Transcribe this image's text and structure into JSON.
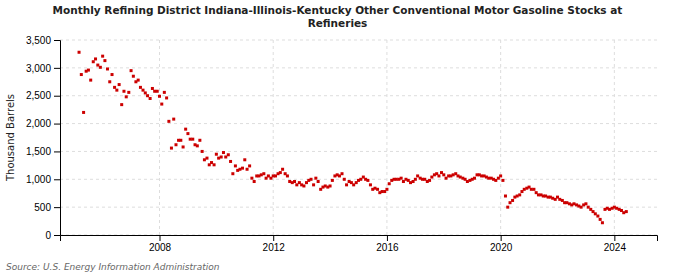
{
  "chart_data": {
    "type": "scatter",
    "title": "Monthly Refining District Indiana-Illinois-Kentucky Other Conventional Motor Gasoline Stocks at\nRefineries",
    "ylabel": "Thousand Barrels",
    "source": "Source: U.S. Energy Information Administration",
    "color": "#cc0000",
    "marker": "square",
    "grid": true,
    "xlim": [
      2004.5,
      2025.5
    ],
    "xticks": [
      2008,
      2012,
      2016,
      2020,
      2024
    ],
    "ylim": [
      0,
      3500
    ],
    "yticks": [
      0,
      500,
      {
        "value": 1000,
        "label": "1,000"
      },
      {
        "value": 1500,
        "label": "1,500"
      },
      {
        "value": 2000,
        "label": "2,000"
      },
      {
        "value": 2500,
        "label": "2,500"
      },
      {
        "value": 3000,
        "label": "3,000"
      },
      {
        "value": 3500,
        "label": "3,500"
      }
    ],
    "x": [
      2005.17,
      2005.25,
      2005.33,
      2005.42,
      2005.5,
      2005.58,
      2005.67,
      2005.75,
      2005.83,
      2005.92,
      2006.0,
      2006.08,
      2006.17,
      2006.25,
      2006.33,
      2006.42,
      2006.5,
      2006.58,
      2006.67,
      2006.75,
      2006.83,
      2006.92,
      2007.0,
      2007.08,
      2007.17,
      2007.25,
      2007.33,
      2007.42,
      2007.5,
      2007.58,
      2007.67,
      2007.75,
      2007.83,
      2007.92,
      2008.0,
      2008.08,
      2008.17,
      2008.25,
      2008.33,
      2008.42,
      2008.5,
      2008.58,
      2008.67,
      2008.75,
      2008.83,
      2008.92,
      2009.0,
      2009.08,
      2009.17,
      2009.25,
      2009.33,
      2009.42,
      2009.5,
      2009.58,
      2009.67,
      2009.75,
      2009.83,
      2009.92,
      2010.0,
      2010.08,
      2010.17,
      2010.25,
      2010.33,
      2010.42,
      2010.5,
      2010.58,
      2010.67,
      2010.75,
      2010.83,
      2010.92,
      2011.0,
      2011.08,
      2011.17,
      2011.25,
      2011.33,
      2011.42,
      2011.5,
      2011.58,
      2011.67,
      2011.75,
      2011.83,
      2011.92,
      2012.0,
      2012.08,
      2012.17,
      2012.25,
      2012.33,
      2012.42,
      2012.5,
      2012.58,
      2012.67,
      2012.75,
      2012.83,
      2012.92,
      2013.0,
      2013.08,
      2013.17,
      2013.25,
      2013.33,
      2013.42,
      2013.5,
      2013.58,
      2013.67,
      2013.75,
      2013.83,
      2013.92,
      2014.0,
      2014.08,
      2014.17,
      2014.25,
      2014.33,
      2014.42,
      2014.5,
      2014.58,
      2014.67,
      2014.75,
      2014.83,
      2014.92,
      2015.0,
      2015.08,
      2015.17,
      2015.25,
      2015.33,
      2015.42,
      2015.5,
      2015.58,
      2015.67,
      2015.75,
      2015.83,
      2015.92,
      2016.0,
      2016.08,
      2016.17,
      2016.25,
      2016.33,
      2016.42,
      2016.5,
      2016.58,
      2016.67,
      2016.75,
      2016.83,
      2016.92,
      2017.0,
      2017.08,
      2017.17,
      2017.25,
      2017.33,
      2017.42,
      2017.5,
      2017.58,
      2017.67,
      2017.75,
      2017.83,
      2017.92,
      2018.0,
      2018.08,
      2018.17,
      2018.25,
      2018.33,
      2018.42,
      2018.5,
      2018.58,
      2018.67,
      2018.75,
      2018.83,
      2018.92,
      2019.0,
      2019.08,
      2019.17,
      2019.25,
      2019.33,
      2019.42,
      2019.5,
      2019.58,
      2019.67,
      2019.75,
      2019.83,
      2019.92,
      2020.0,
      2020.08,
      2020.17,
      2020.25,
      2020.33,
      2020.42,
      2020.5,
      2020.58,
      2020.67,
      2020.75,
      2020.83,
      2020.92,
      2021.0,
      2021.08,
      2021.17,
      2021.25,
      2021.33,
      2021.42,
      2021.5,
      2021.58,
      2021.67,
      2021.75,
      2021.83,
      2021.92,
      2022.0,
      2022.08,
      2022.17,
      2022.25,
      2022.33,
      2022.42,
      2022.5,
      2022.58,
      2022.67,
      2022.75,
      2022.83,
      2022.92,
      2023.0,
      2023.08,
      2023.17,
      2023.25,
      2023.33,
      2023.42,
      2023.5,
      2023.58,
      2023.67,
      2023.75,
      2023.83,
      2023.92,
      2024.0,
      2024.08,
      2024.17,
      2024.25,
      2024.33,
      2024.42
    ],
    "values": [
      3280,
      2880,
      2200,
      2940,
      2960,
      2780,
      3110,
      3160,
      3050,
      3010,
      3210,
      3130,
      2980,
      2750,
      2880,
      2650,
      2600,
      2700,
      2340,
      2580,
      2480,
      2560,
      2950,
      2850,
      2750,
      2780,
      2650,
      2600,
      2550,
      2500,
      2450,
      2630,
      2580,
      2580,
      2490,
      2350,
      2560,
      2460,
      2040,
      1560,
      2080,
      1620,
      1700,
      1700,
      1580,
      1900,
      1820,
      1720,
      1720,
      1620,
      1600,
      1700,
      1500,
      1350,
      1380,
      1260,
      1300,
      1260,
      1450,
      1380,
      1400,
      1480,
      1400,
      1440,
      1320,
      1100,
      1240,
      1160,
      1180,
      1200,
      1350,
      1180,
      1240,
      1020,
      960,
      1060,
      1060,
      1080,
      1100,
      1020,
      1060,
      1020,
      1060,
      1060,
      1100,
      1120,
      1180,
      1100,
      1060,
      960,
      940,
      960,
      900,
      940,
      900,
      880,
      940,
      980,
      1000,
      900,
      1020,
      960,
      820,
      860,
      880,
      860,
      880,
      980,
      1060,
      1080,
      1060,
      1100,
      1000,
      900,
      960,
      940,
      900,
      940,
      980,
      1000,
      1040,
      1000,
      980,
      900,
      820,
      840,
      820,
      760,
      780,
      780,
      820,
      920,
      980,
      1000,
      1000,
      1000,
      1020,
      960,
      1000,
      980,
      940,
      960,
      1000,
      1060,
      1020,
      1000,
      1000,
      960,
      980,
      1040,
      1080,
      1100,
      1060,
      1120,
      1080,
      1020,
      1060,
      1060,
      1080,
      1100,
      1060,
      1040,
      1020,
      1000,
      960,
      980,
      1000,
      1020,
      1080,
      1080,
      1060,
      1060,
      1040,
      1020,
      1020,
      1000,
      980,
      1020,
      1060,
      980,
      700,
      500,
      580,
      620,
      680,
      700,
      720,
      780,
      820,
      840,
      860,
      820,
      820,
      760,
      720,
      720,
      700,
      700,
      680,
      680,
      660,
      640,
      680,
      640,
      620,
      580,
      580,
      560,
      540,
      560,
      540,
      520,
      500,
      540,
      560,
      500,
      460,
      420,
      380,
      340,
      280,
      220,
      460,
      480,
      460,
      480,
      500,
      480,
      460,
      440,
      400,
      420
    ]
  }
}
